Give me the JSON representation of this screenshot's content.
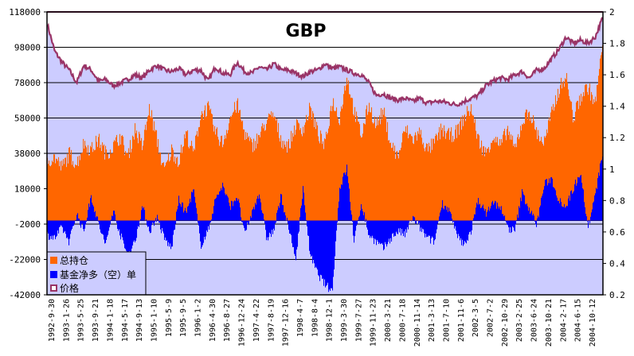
{
  "chart_data": {
    "type": "area",
    "title": "GBP",
    "xlabel": "",
    "ylabel": "",
    "y2label": "",
    "ylim": [
      -42000,
      118000
    ],
    "y2lim": [
      0.2,
      2.0
    ],
    "grid": true,
    "legend_position": "bottom-left",
    "y_ticks": [
      "118000",
      "98000",
      "78000",
      "58000",
      "38000",
      "18000",
      "-2000",
      "-22000",
      "-42000"
    ],
    "y2_ticks": [
      "2",
      "1.8",
      "1.6",
      "1.4",
      "1.2",
      "1",
      "0.8",
      "0.6",
      "0.4",
      "0.2"
    ],
    "x_tick_labels": [
      "1992-9-30",
      "1993-1-26",
      "1993-5-25",
      "1993-9-21",
      "1994-1-18",
      "1994-5-17",
      "1994-9-13",
      "1995-1-10",
      "1995-5-9",
      "1995-9-5",
      "1996-1-2",
      "1996-4-30",
      "1996-8-27",
      "1996-12-24",
      "1997-4-22",
      "1997-8-19",
      "1997-12-16",
      "1998-4-7",
      "1998-8-4",
      "1998-12-1",
      "1999-3-30",
      "1999-7-27",
      "1999-11-23",
      "2000-3-21",
      "2000-7-18",
      "2000-11-14",
      "2001-3-13",
      "2001-7-10",
      "2001-11-6",
      "2002-3-5",
      "2002-7-2",
      "2002-10-29",
      "2003-2-25",
      "2003-6-24",
      "2003-10-21",
      "2004-2-17",
      "2004-6-15",
      "2004-10-12"
    ],
    "colors": {
      "open_interest": "#ff6600",
      "fund_net": "#0000ff",
      "price": "#993366",
      "plot_bg": "#ccccff",
      "grid": "#000000"
    },
    "series": [
      {
        "name": "总持仓",
        "axis": "left",
        "values": [
          32000,
          34000,
          28000,
          36000,
          30000,
          42000,
          38000,
          44000,
          36000,
          40000,
          46000,
          34000,
          50000,
          40000,
          62000,
          44000,
          26000,
          38000,
          32000,
          48000,
          36000,
          58000,
          62000,
          48000,
          42000,
          56000,
          64000,
          48000,
          40000,
          46000,
          54000,
          58000,
          44000,
          40000,
          52000,
          50000,
          62000,
          48000,
          40000,
          66000,
          56000,
          80000,
          60000,
          46000,
          64000,
          52000,
          60000,
          42000,
          34000,
          50000,
          44000,
          48000,
          38000,
          42000,
          50000,
          46000,
          48000,
          56000,
          62000,
          44000,
          36000,
          46000,
          40000,
          50000,
          38000,
          54000,
          60000,
          48000,
          42000,
          58000,
          72000,
          80000,
          56000,
          68000,
          74000,
          64000,
          98000
        ]
      },
      {
        "name": "基金净多（空）单",
        "axis": "left",
        "values": [
          -8000,
          -10000,
          -4000,
          -12000,
          4000,
          -6000,
          14000,
          -2000,
          -14000,
          6000,
          -8000,
          -20000,
          -12000,
          8000,
          -6000,
          2000,
          -10000,
          -16000,
          12000,
          4000,
          18000,
          -14000,
          -6000,
          12000,
          20000,
          8000,
          14000,
          -8000,
          4000,
          16000,
          -10000,
          -6000,
          14000,
          -4000,
          -22000,
          18000,
          -20000,
          -30000,
          -36000,
          -40000,
          18000,
          30000,
          -12000,
          10000,
          -8000,
          -12000,
          -16000,
          -10000,
          -6000,
          -8000,
          2000,
          -4000,
          -10000,
          -12000,
          10000,
          6000,
          -8000,
          -14000,
          -6000,
          12000,
          4000,
          10000,
          8000,
          -4000,
          -6000,
          16000,
          6000,
          -2000,
          20000,
          24000,
          12000,
          8000,
          18000,
          28000,
          -4000,
          14000,
          38000
        ]
      },
      {
        "name": "价格",
        "axis": "right",
        "values": [
          1.92,
          1.75,
          1.68,
          1.63,
          1.55,
          1.66,
          1.63,
          1.56,
          1.57,
          1.53,
          1.55,
          1.57,
          1.6,
          1.58,
          1.63,
          1.66,
          1.63,
          1.62,
          1.64,
          1.6,
          1.63,
          1.63,
          1.56,
          1.65,
          1.61,
          1.6,
          1.68,
          1.62,
          1.61,
          1.65,
          1.63,
          1.67,
          1.63,
          1.63,
          1.61,
          1.59,
          1.62,
          1.63,
          1.67,
          1.64,
          1.65,
          1.63,
          1.61,
          1.6,
          1.55,
          1.47,
          1.48,
          1.45,
          1.44,
          1.45,
          1.43,
          1.45,
          1.42,
          1.43,
          1.43,
          1.42,
          1.41,
          1.43,
          1.45,
          1.47,
          1.53,
          1.56,
          1.58,
          1.57,
          1.6,
          1.62,
          1.58,
          1.63,
          1.64,
          1.7,
          1.76,
          1.84,
          1.8,
          1.82,
          1.8,
          1.84,
          1.96
        ]
      }
    ]
  }
}
